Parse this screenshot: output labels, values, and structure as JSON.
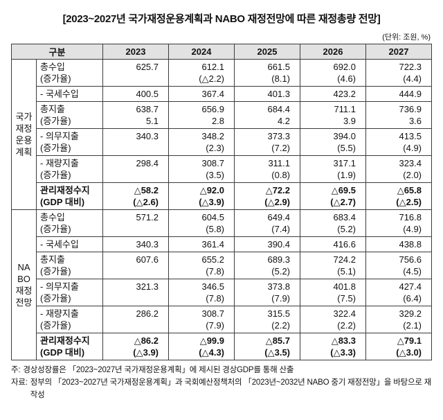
{
  "title": "[2023~2027년 국가재정운용계획과 NABO 재정전망에 따른 재정총량 전망]",
  "unit_note": "(단위: 조원, %)",
  "table": {
    "header": [
      "구분",
      "2023",
      "2024",
      "2025",
      "2026",
      "2027"
    ],
    "sections": [
      {
        "group_label": [
          "국가",
          "재정",
          "운용",
          "계획"
        ],
        "rows": [
          {
            "label": [
              "총수입",
              "(증가율)"
            ],
            "bold": false,
            "values": [
              [
                "625.7",
                ""
              ],
              [
                "612.1",
                "(△2.2)"
              ],
              [
                "661.5",
                "(8.1)"
              ],
              [
                "692.0",
                "(4.6)"
              ],
              [
                "722.3",
                "(4.4)"
              ]
            ]
          },
          {
            "label": [
              "- 국세수입"
            ],
            "bold": false,
            "values": [
              [
                "400.5"
              ],
              [
                "367.4"
              ],
              [
                "401.3"
              ],
              [
                "423.2"
              ],
              [
                "444.9"
              ]
            ]
          },
          {
            "label": [
              "총지출",
              "(증가율)"
            ],
            "bold": false,
            "values": [
              [
                "638.7",
                "5.1"
              ],
              [
                "656.9",
                "2.8"
              ],
              [
                "684.4",
                "4.2"
              ],
              [
                "711.1",
                "3.9"
              ],
              [
                "736.9",
                "3.6"
              ]
            ]
          },
          {
            "label": [
              "- 의무지출",
              "(증가율)"
            ],
            "bold": false,
            "values": [
              [
                "340.3",
                ""
              ],
              [
                "348.2",
                "(2.3)"
              ],
              [
                "373.3",
                "(7.2)"
              ],
              [
                "394.0",
                "(5.5)"
              ],
              [
                "413.5",
                "(4.9)"
              ]
            ]
          },
          {
            "label": [
              "- 재량지출",
              "(증가율)"
            ],
            "bold": false,
            "values": [
              [
                "298.4",
                ""
              ],
              [
                "308.7",
                "(3.5)"
              ],
              [
                "311.1",
                "(0.8)"
              ],
              [
                "317.1",
                "(1.9)"
              ],
              [
                "323.4",
                "(2.0)"
              ]
            ]
          },
          {
            "label": [
              "관리재정수지",
              "(GDP 대비)"
            ],
            "bold": true,
            "values": [
              [
                "△58.2",
                "(△2.6)"
              ],
              [
                "△92.0",
                "(△3.9)"
              ],
              [
                "△72.2",
                "(△2.9)"
              ],
              [
                "△69.5",
                "(△2.7)"
              ],
              [
                "△65.8",
                "(△2.5)"
              ]
            ]
          }
        ]
      },
      {
        "group_label": [
          "NA",
          "BO",
          "재정",
          "전망"
        ],
        "rows": [
          {
            "label": [
              "총수입",
              "(증가율)"
            ],
            "bold": false,
            "values": [
              [
                "571.2",
                ""
              ],
              [
                "604.5",
                "(5.8)"
              ],
              [
                "649.4",
                "(7.4)"
              ],
              [
                "683.4",
                "(5.2)"
              ],
              [
                "716.8",
                "(4.9)"
              ]
            ]
          },
          {
            "label": [
              "- 국세수입"
            ],
            "bold": false,
            "values": [
              [
                "340.3"
              ],
              [
                "361.4"
              ],
              [
                "390.4"
              ],
              [
                "416.6"
              ],
              [
                "438.8"
              ]
            ]
          },
          {
            "label": [
              "총지출",
              "(증가율)"
            ],
            "bold": false,
            "values": [
              [
                "607.6",
                ""
              ],
              [
                "655.2",
                "(7.8)"
              ],
              [
                "689.3",
                "(5.2)"
              ],
              [
                "724.2",
                "(5.1)"
              ],
              [
                "756.6",
                "(4.5)"
              ]
            ]
          },
          {
            "label": [
              "- 의무지출",
              "(증가율)"
            ],
            "bold": false,
            "values": [
              [
                "321.3",
                ""
              ],
              [
                "346.5",
                "(7.8)"
              ],
              [
                "373.8",
                "(7.9)"
              ],
              [
                "401.8",
                "(7.5)"
              ],
              [
                "427.4",
                "(6.4)"
              ]
            ]
          },
          {
            "label": [
              "- 재량지출",
              "(증가율)"
            ],
            "bold": false,
            "values": [
              [
                "286.2",
                ""
              ],
              [
                "308.7",
                "(7.9)"
              ],
              [
                "315.5",
                "(2.2)"
              ],
              [
                "322.4",
                "(2.2)"
              ],
              [
                "329.2",
                "(2.1)"
              ]
            ]
          },
          {
            "label": [
              "관리재정수지",
              "(GDP 대비)"
            ],
            "bold": true,
            "values": [
              [
                "△86.2",
                "(△3.9)"
              ],
              [
                "△99.9",
                "(△4.3)"
              ],
              [
                "△85.7",
                "(△3.5)"
              ],
              [
                "△83.3",
                "(△3.3)"
              ],
              [
                "△79.1",
                "(△3.0)"
              ]
            ]
          }
        ]
      }
    ]
  },
  "notes": [
    {
      "label": "주:",
      "text": "경상성장률은 「2023~2027년 국가재정운용계획」에 제시된 경상GDP를 통해 산출"
    },
    {
      "label": "자료:",
      "text": "정부의 「2023~2027년 국가재정운용계획」과 국회예산정책처의 「2023년~2032년 NABO 중기 재정전망」을 바탕으로 재작성"
    }
  ]
}
